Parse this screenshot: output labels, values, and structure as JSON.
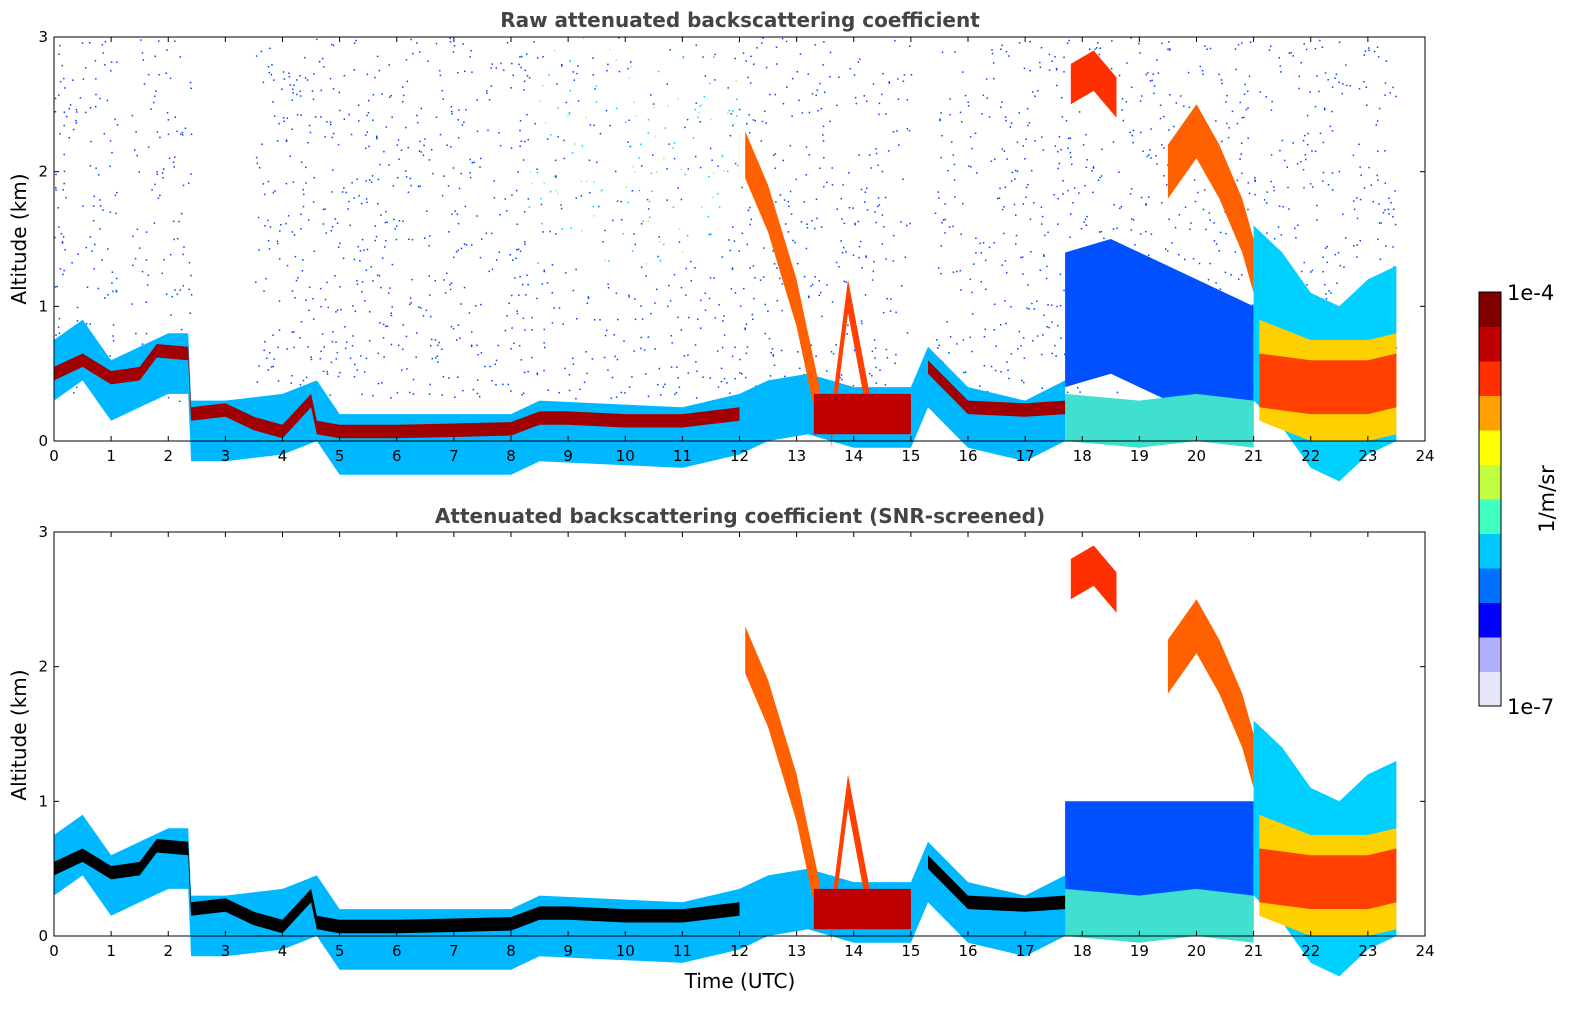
{
  "chart_data": [
    {
      "type": "heatmap",
      "title": "Raw attenuated backscattering coefficient",
      "xlabel": "",
      "ylabel": "Altitude (km)",
      "xlim": [
        0,
        24
      ],
      "ylim": [
        0,
        3
      ],
      "xticks": [
        "0",
        "1",
        "2",
        "3",
        "4",
        "5",
        "6",
        "7",
        "8",
        "9",
        "10",
        "11",
        "12",
        "13",
        "14",
        "15",
        "16",
        "17",
        "18",
        "19",
        "20",
        "21",
        "22",
        "23",
        "24"
      ],
      "yticks": [
        "0",
        "1",
        "2",
        "3"
      ],
      "data_end_time": 23.5,
      "layer_top_km": [
        [
          0,
          0.55
        ],
        [
          0.5,
          0.65
        ],
        [
          1,
          0.52
        ],
        [
          1.5,
          0.55
        ],
        [
          2,
          0.7
        ],
        [
          2.4,
          0.25
        ],
        [
          3,
          0.25
        ],
        [
          4,
          0.12
        ],
        [
          4.5,
          0.35
        ],
        [
          5,
          0.12
        ],
        [
          6,
          0.12
        ],
        [
          7,
          0.13
        ],
        [
          8,
          0.14
        ],
        [
          8.5,
          0.22
        ],
        [
          9,
          0.22
        ],
        [
          10,
          0.2
        ],
        [
          11,
          0.2
        ],
        [
          12,
          0.25
        ],
        [
          12.3,
          2.2
        ],
        [
          12.6,
          1.8
        ],
        [
          13,
          1.3
        ],
        [
          13.5,
          0.35
        ],
        [
          14,
          1.1
        ],
        [
          14.5,
          0.35
        ],
        [
          15,
          0.4
        ],
        [
          15.3,
          0.65
        ],
        [
          16,
          0.3
        ],
        [
          17,
          0.25
        ],
        [
          17.7,
          0.3
        ]
      ]
    },
    {
      "type": "heatmap",
      "title": "Attenuated backscattering coefficient (SNR-screened)",
      "xlabel": "Time (UTC)",
      "ylabel": "Altitude (km)",
      "xlim": [
        0,
        24
      ],
      "ylim": [
        0,
        3
      ],
      "xticks": [
        "0",
        "1",
        "2",
        "3",
        "4",
        "5",
        "6",
        "7",
        "8",
        "9",
        "10",
        "11",
        "12",
        "13",
        "14",
        "15",
        "16",
        "17",
        "18",
        "19",
        "20",
        "21",
        "22",
        "23",
        "24"
      ],
      "yticks": [
        "0",
        "1",
        "2",
        "3"
      ],
      "data_end_time": 23.5
    }
  ],
  "colorbar": {
    "label": "1/m/sr",
    "min_label": "1e-7",
    "max_label": "1e-4",
    "colors": [
      "#e6e6fa",
      "#b0b0ff",
      "#0000ff",
      "#0070ff",
      "#00c8ff",
      "#40ffc0",
      "#c0ff40",
      "#ffff00",
      "#ffa000",
      "#ff3000",
      "#c00000",
      "#800000"
    ]
  }
}
